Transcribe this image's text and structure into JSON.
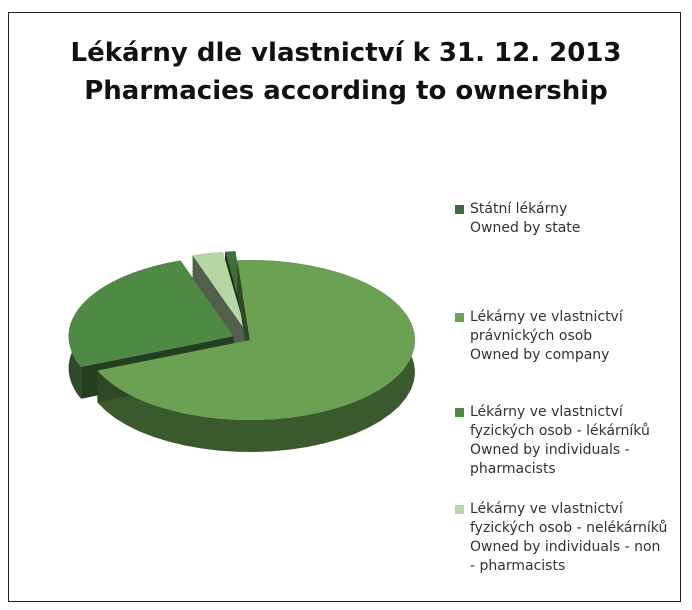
{
  "chart_data": {
    "type": "pie",
    "title": "Lékárny dle vlastnictví k 31. 12. 2013\nPharmacies according to ownership",
    "labels": [
      "Státní lékárny\nOwned by state",
      "Lékárny ve vlastnictví\nprávnických osob\nOwned by company",
      "Lékárny ve vlastnictví\nfyzických osob - lékárníků\nOwned by individuals -\npharmacists",
      "Lékárny ve vlastnictví\nfyzických osob - nelékárníků\nOwned by individuals - non\n- pharmacists"
    ],
    "values": [
      1.0,
      70.0,
      26.0,
      3.0
    ],
    "colors": [
      "#3f6e3a",
      "#6aa152",
      "#4f8a45",
      "#b6d6a6"
    ],
    "legend_position": "right",
    "style": "3d-exploded"
  }
}
